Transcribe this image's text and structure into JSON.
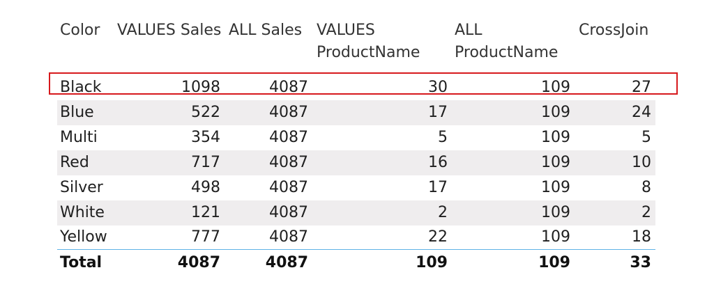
{
  "columns": {
    "color": "Color",
    "values_sales": "VALUES Sales",
    "all_sales": "ALL Sales",
    "values_productname_l1": "VALUES",
    "values_productname_l2": "ProductName",
    "all_productname_l1": "ALL",
    "all_productname_l2": "ProductName",
    "crossjoin": "CrossJoin"
  },
  "rows": [
    {
      "color": "Black",
      "values_sales": "1098",
      "all_sales": "4087",
      "values_productname": "30",
      "all_productname": "109",
      "crossjoin": "27"
    },
    {
      "color": "Blue",
      "values_sales": "522",
      "all_sales": "4087",
      "values_productname": "17",
      "all_productname": "109",
      "crossjoin": "24"
    },
    {
      "color": "Multi",
      "values_sales": "354",
      "all_sales": "4087",
      "values_productname": "5",
      "all_productname": "109",
      "crossjoin": "5"
    },
    {
      "color": "Red",
      "values_sales": "717",
      "all_sales": "4087",
      "values_productname": "16",
      "all_productname": "109",
      "crossjoin": "10"
    },
    {
      "color": "Silver",
      "values_sales": "498",
      "all_sales": "4087",
      "values_productname": "17",
      "all_productname": "109",
      "crossjoin": "8"
    },
    {
      "color": "White",
      "values_sales": "121",
      "all_sales": "4087",
      "values_productname": "2",
      "all_productname": "109",
      "crossjoin": "2"
    },
    {
      "color": "Yellow",
      "values_sales": "777",
      "all_sales": "4087",
      "values_productname": "22",
      "all_productname": "109",
      "crossjoin": "18"
    }
  ],
  "total": {
    "label": "Total",
    "values_sales": "4087",
    "all_sales": "4087",
    "values_productname": "109",
    "all_productname": "109",
    "crossjoin": "33"
  },
  "colors": {
    "highlight_border": "#d7191c",
    "total_divider": "#5fb3e6",
    "stripe": "#efedee"
  }
}
